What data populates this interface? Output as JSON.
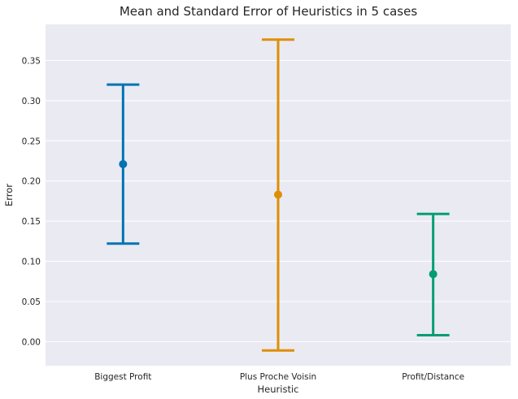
{
  "chart_data": {
    "type": "pointplot",
    "title": "Mean and Standard Error of Heuristics in 5 cases",
    "xlabel": "Heuristic",
    "ylabel": "Error",
    "categories": [
      "Biggest Profit",
      "Plus Proche Voisin",
      "Profit/Distance"
    ],
    "means": [
      0.221,
      0.183,
      0.084
    ],
    "error_low": [
      0.122,
      -0.011,
      0.008
    ],
    "error_high": [
      0.32,
      0.376,
      0.159
    ],
    "colors": [
      "#0173b2",
      "#de8f05",
      "#029e73"
    ],
    "ylim": [
      -0.03,
      0.395
    ],
    "yticks": [
      "0.00",
      "0.05",
      "0.10",
      "0.15",
      "0.20",
      "0.25",
      "0.30",
      "0.35"
    ],
    "ytick_values": [
      0.0,
      0.05,
      0.1,
      0.15,
      0.2,
      0.25,
      0.3,
      0.35
    ],
    "grid": true,
    "background_color": "#eaeaf2",
    "grid_color": "#ffffff"
  }
}
